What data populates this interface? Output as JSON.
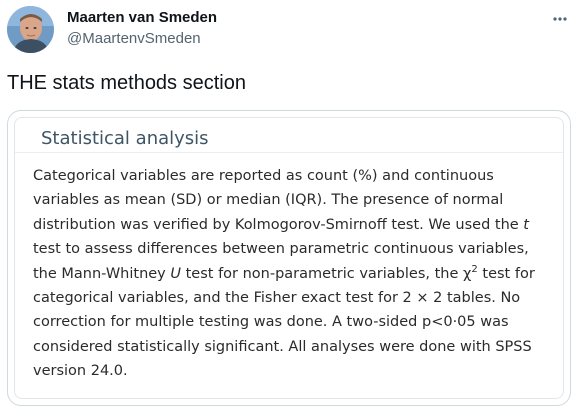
{
  "author": {
    "name": "Maarten van Smeden",
    "handle": "@MaartenvSmeden",
    "avatar_icon": "profile-photo-avatar"
  },
  "more_icon": "more-horizontal-icon",
  "tweet": {
    "text": "THE stats methods section"
  },
  "media": {
    "heading": "Statistical analysis",
    "lines": [
      {
        "parts": [
          "Categorical variables are reported as count (%) and continuous"
        ]
      },
      {
        "parts": [
          "variables as mean (SD) or median (IQR). The presence of normal"
        ]
      },
      {
        "parts": [
          "distribution was verified by Kolmogorov-Smirnoff test. We used the ",
          "t"
        ]
      },
      {
        "parts": [
          "test to assess differences between parametric continuous variables,"
        ]
      },
      {
        "parts": [
          "the Mann-Whitney ",
          "U",
          " test for non-parametric variables, the ",
          "χ",
          "2",
          " test for"
        ]
      },
      {
        "parts": [
          "categorical variables, and the Fisher exact test for 2 × 2 tables. No"
        ]
      },
      {
        "parts": [
          "correction for multiple testing was done. A two-sided p<0·05 was"
        ]
      },
      {
        "parts": [
          "considered statistically significant. All analyses were done with SPSS"
        ]
      },
      {
        "parts": [
          "version 24.0."
        ]
      }
    ]
  },
  "colors": {
    "name": "#0f1419",
    "handle": "#536471",
    "card_border": "#cfd9de",
    "media_heading": "#3e5566",
    "media_text": "#2b2b2b"
  }
}
